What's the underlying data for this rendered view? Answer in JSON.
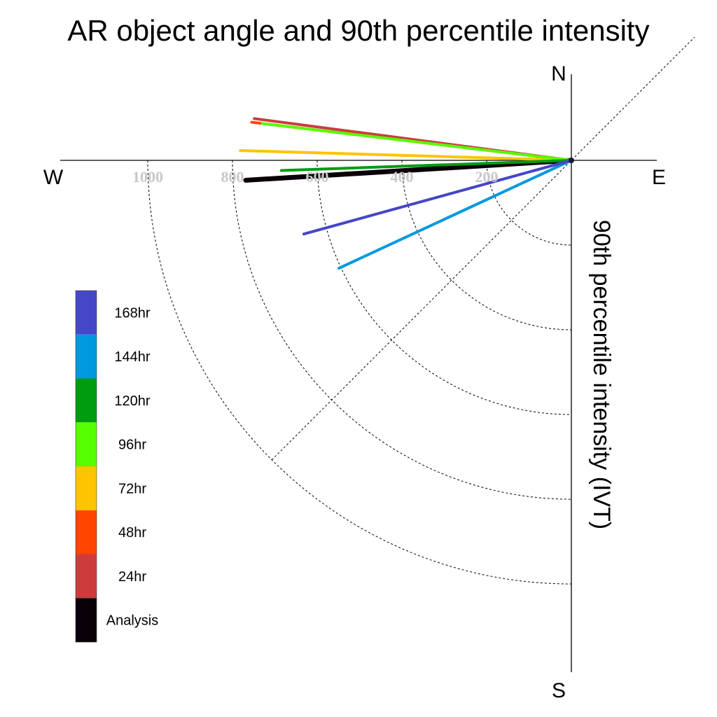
{
  "chart_data": {
    "type": "polar-vector",
    "title": "AR object angle and 90th percentile intensity",
    "radial_label": "90th percentile intensity (IVT)",
    "directions": {
      "north": "N",
      "south": "S",
      "east": "E",
      "west": "W"
    },
    "radial_ticks": [
      200,
      400,
      600,
      800,
      1000
    ],
    "radial_tick_labels": [
      "200",
      "400",
      "600",
      "800",
      "1000"
    ],
    "grid": true,
    "legend_position": "left",
    "series": [
      {
        "name": "Analysis",
        "color": "#0a0008",
        "angle_deg": -3.5,
        "intensity": 770
      },
      {
        "name": "24hr",
        "color": "#cc3c3c",
        "angle_deg": 7.5,
        "intensity": 755
      },
      {
        "name": "48hr",
        "color": "#ff4500",
        "angle_deg": 6.8,
        "intensity": 760
      },
      {
        "name": "72hr",
        "color": "#ffc400",
        "angle_deg": 1.7,
        "intensity": 782
      },
      {
        "name": "96hr",
        "color": "#55ff00",
        "angle_deg": 6.8,
        "intensity": 735
      },
      {
        "name": "120hr",
        "color": "#009c10",
        "angle_deg": -2.0,
        "intensity": 685
      },
      {
        "name": "144hr",
        "color": "#0099e0",
        "angle_deg": -24.9,
        "intensity": 605
      },
      {
        "name": "168hr",
        "color": "#4646c8",
        "angle_deg": -15.4,
        "intensity": 655
      }
    ]
  }
}
